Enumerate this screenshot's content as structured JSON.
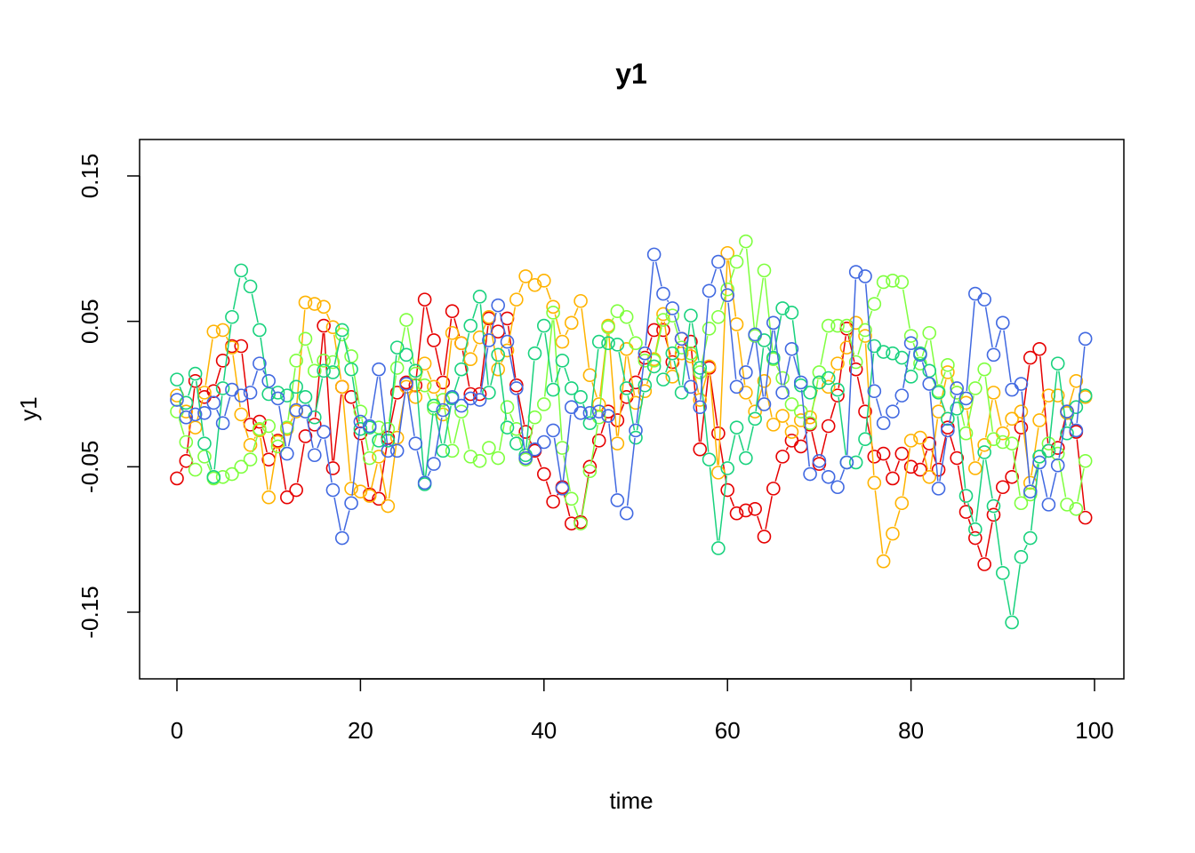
{
  "chart_data": {
    "type": "line",
    "title": "y1",
    "xlabel": "time",
    "ylabel": "y1",
    "xlim": [
      0,
      100
    ],
    "ylim": [
      -0.15,
      0.15
    ],
    "x_ticks": [
      0,
      20,
      40,
      60,
      80,
      100
    ],
    "y_ticks": [
      -0.15,
      -0.05,
      0.05,
      0.15
    ],
    "x_tick_labels": [
      "0",
      "20",
      "40",
      "60",
      "80",
      "100"
    ],
    "y_tick_labels": [
      "-0.15",
      "-0.05",
      "0.05",
      "0.15"
    ],
    "line_style": "b",
    "marker": "open-circle",
    "grid": false,
    "x": [
      0,
      1,
      2,
      3,
      4,
      5,
      6,
      7,
      8,
      9,
      10,
      11,
      12,
      13,
      14,
      15,
      16,
      17,
      18,
      19,
      20,
      21,
      22,
      23,
      24,
      25,
      26,
      27,
      28,
      29,
      30,
      31,
      32,
      33,
      34,
      35,
      36,
      37,
      38,
      39,
      40,
      41,
      42,
      43,
      44,
      45,
      46,
      47,
      48,
      49,
      50,
      51,
      52,
      53,
      54,
      55,
      56,
      57,
      58,
      59,
      60,
      61,
      62,
      63,
      64,
      65,
      66,
      67,
      68,
      69,
      70,
      71,
      72,
      73,
      74,
      75,
      76,
      77,
      78,
      79,
      80,
      81,
      82,
      83,
      84,
      85,
      86,
      87,
      88,
      89,
      90,
      91,
      92,
      93,
      94,
      95,
      96,
      97,
      98,
      99
    ],
    "series": [
      {
        "color": "#e60000",
        "values": [
          -0.058,
          -0.046,
          0.009,
          -0.002,
          0.002,
          0.023,
          0.033,
          0.033,
          -0.021,
          -0.019,
          -0.045,
          -0.032,
          -0.071,
          -0.066,
          -0.029,
          -0.021,
          0.047,
          -0.051,
          0.005,
          -0.002,
          -0.027,
          -0.069,
          -0.072,
          -0.03,
          0.001,
          0.008,
          0.006,
          0.065,
          0.037,
          0.008,
          0.057,
          0.035,
          0.0,
          0.0,
          0.052,
          0.043,
          0.052,
          0.006,
          -0.026,
          -0.039,
          -0.055,
          -0.074,
          -0.064,
          -0.089,
          -0.088,
          -0.05,
          -0.032,
          -0.012,
          -0.018,
          -0.002,
          0.008,
          0.025,
          0.044,
          0.044,
          0.022,
          0.038,
          0.036,
          -0.038,
          0.018,
          -0.027,
          -0.066,
          -0.082,
          -0.08,
          -0.079,
          -0.098,
          -0.065,
          -0.043,
          -0.032,
          -0.036,
          -0.021,
          -0.048,
          -0.022,
          -0.001,
          0.045,
          0.017,
          -0.012,
          -0.043,
          -0.041,
          -0.058,
          -0.041,
          -0.05,
          -0.052,
          -0.034,
          -0.052,
          -0.023,
          -0.044,
          -0.081,
          -0.099,
          -0.117,
          -0.083,
          -0.064,
          -0.057,
          -0.023,
          0.025,
          0.031,
          -0.039,
          -0.037,
          -0.012,
          -0.026,
          -0.085
        ]
      },
      {
        "color": "#ffb300",
        "values": [
          -0.001,
          -0.012,
          -0.023,
          0.001,
          0.043,
          0.044,
          0.032,
          -0.014,
          -0.035,
          -0.025,
          -0.071,
          -0.033,
          -0.024,
          -0.012,
          0.063,
          0.062,
          0.06,
          0.046,
          0.005,
          -0.065,
          -0.067,
          -0.07,
          -0.043,
          -0.077,
          -0.03,
          0.005,
          -0.002,
          0.021,
          0.005,
          -0.014,
          0.042,
          0.035,
          0.024,
          0.039,
          0.053,
          0.017,
          0.03,
          0.065,
          0.081,
          0.075,
          0.078,
          0.06,
          0.036,
          0.049,
          0.064,
          0.013,
          -0.007,
          0.047,
          -0.034,
          0.031,
          -0.006,
          0.002,
          0.024,
          0.055,
          0.012,
          0.028,
          0.026,
          -0.004,
          0.019,
          -0.054,
          0.097,
          0.048,
          0.001,
          -0.012,
          0.009,
          -0.021,
          -0.015,
          -0.026,
          -0.018,
          -0.016,
          0.008,
          0.005,
          0.021,
          0.032,
          0.049,
          0.04,
          -0.061,
          -0.115,
          -0.096,
          -0.075,
          -0.032,
          -0.03,
          -0.057,
          -0.012,
          0.015,
          0.001,
          -0.006,
          -0.051,
          -0.035,
          0.001,
          -0.027,
          -0.017,
          -0.012,
          -0.061,
          -0.018,
          -0.001,
          -0.001,
          -0.013,
          0.009,
          -0.002
        ]
      },
      {
        "color": "#7fff3f",
        "values": [
          -0.012,
          -0.033,
          -0.052,
          -0.043,
          -0.058,
          -0.057,
          -0.055,
          -0.05,
          -0.045,
          -0.024,
          -0.022,
          -0.036,
          -0.023,
          0.023,
          0.038,
          0.016,
          0.023,
          0.022,
          0.041,
          0.026,
          -0.012,
          -0.044,
          -0.023,
          -0.024,
          0.018,
          0.051,
          0.014,
          0.006,
          -0.01,
          -0.004,
          -0.039,
          -0.012,
          -0.043,
          -0.046,
          -0.037,
          -0.044,
          -0.009,
          -0.024,
          -0.045,
          -0.016,
          -0.007,
          0.056,
          -0.037,
          -0.072,
          -0.089,
          -0.053,
          -0.016,
          0.046,
          0.057,
          0.053,
          0.035,
          0.023,
          0.023,
          0.051,
          0.054,
          0.032,
          0.028,
          0.015,
          0.045,
          0.053,
          0.072,
          0.091,
          0.105,
          0.04,
          0.085,
          0.024,
          0.011,
          -0.007,
          -0.012,
          -0.02,
          0.015,
          0.047,
          0.047,
          0.047,
          0.022,
          0.044,
          0.062,
          0.077,
          0.078,
          0.077,
          0.04,
          0.021,
          0.042,
          0.002,
          0.02,
          0.001,
          -0.027,
          0.004,
          0.017,
          -0.031,
          -0.033,
          -0.034,
          -0.075,
          -0.069,
          -0.043,
          -0.034,
          -0.041,
          -0.076,
          -0.079,
          -0.046
        ]
      },
      {
        "color": "#19d27e",
        "values": [
          0.01,
          -0.006,
          0.014,
          -0.034,
          -0.057,
          0.004,
          0.053,
          0.085,
          0.074,
          0.044,
          0.0,
          0.001,
          -0.001,
          0.005,
          -0.002,
          -0.016,
          0.016,
          0.015,
          0.044,
          0.017,
          -0.024,
          -0.023,
          -0.032,
          -0.032,
          0.032,
          0.027,
          0.016,
          -0.062,
          -0.008,
          -0.039,
          -0.003,
          0.017,
          0.047,
          0.067,
          0.001,
          0.027,
          -0.023,
          -0.034,
          -0.042,
          0.028,
          0.047,
          0.003,
          0.023,
          0.004,
          -0.002,
          -0.02,
          0.036,
          0.035,
          0.034,
          0.004,
          -0.03,
          0.006,
          0.019,
          0.01,
          0.028,
          0.001,
          0.054,
          0.018,
          -0.045,
          -0.106,
          -0.051,
          -0.023,
          -0.044,
          -0.017,
          0.037,
          0.025,
          0.059,
          0.056,
          0.006,
          0.001,
          0.008,
          0.011,
          0.003,
          -0.047,
          -0.047,
          -0.031,
          0.033,
          0.029,
          0.028,
          0.025,
          0.012,
          0.028,
          0.016,
          0.001,
          -0.017,
          -0.01,
          -0.07,
          -0.093,
          -0.04,
          -0.077,
          -0.123,
          -0.157,
          -0.112,
          -0.099,
          -0.043,
          -0.039,
          0.021,
          -0.027,
          -0.009,
          -0.001
        ]
      },
      {
        "color": "#4169e1",
        "values": [
          -0.004,
          -0.016,
          -0.014,
          -0.013,
          -0.006,
          -0.02,
          0.003,
          -0.001,
          0.001,
          0.021,
          0.009,
          -0.003,
          -0.041,
          -0.011,
          -0.012,
          -0.042,
          -0.026,
          -0.066,
          -0.099,
          -0.075,
          -0.019,
          -0.022,
          0.017,
          -0.039,
          -0.039,
          0.007,
          -0.034,
          -0.061,
          -0.048,
          -0.011,
          -0.002,
          -0.008,
          -0.003,
          -0.004,
          0.037,
          0.061,
          0.036,
          0.004,
          -0.044,
          -0.038,
          -0.033,
          -0.025,
          -0.065,
          -0.009,
          -0.013,
          -0.013,
          -0.012,
          -0.015,
          -0.073,
          -0.082,
          -0.025,
          0.028,
          0.096,
          0.069,
          0.059,
          0.038,
          0.005,
          -0.009,
          0.071,
          0.091,
          0.068,
          0.005,
          0.015,
          0.041,
          -0.007,
          0.049,
          0.001,
          0.031,
          0.008,
          -0.055,
          -0.046,
          -0.057,
          -0.064,
          -0.047,
          0.084,
          0.081,
          0.002,
          -0.02,
          -0.012,
          -0.001,
          0.035,
          0.027,
          0.007,
          -0.065,
          -0.025,
          0.004,
          -0.003,
          0.069,
          0.065,
          0.027,
          0.049,
          0.003,
          0.007,
          -0.067,
          -0.047,
          -0.076,
          -0.049,
          -0.012,
          -0.025,
          0.038
        ]
      }
    ]
  }
}
